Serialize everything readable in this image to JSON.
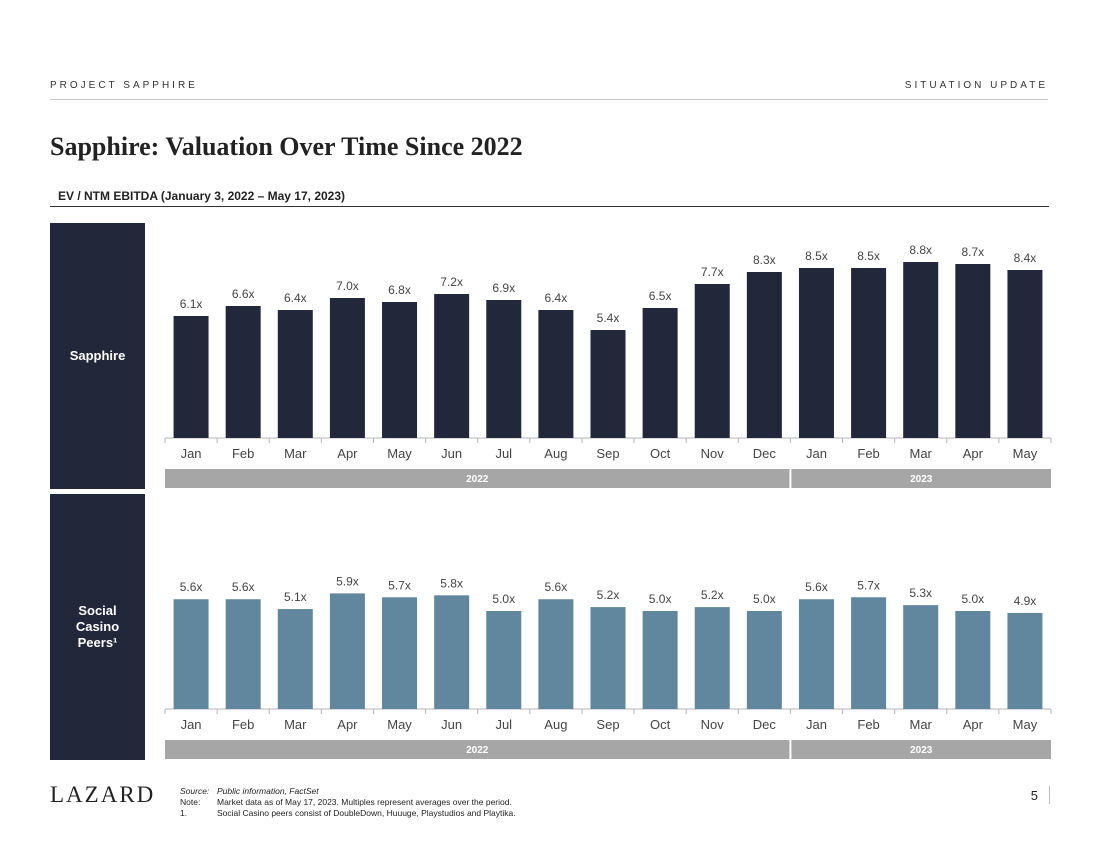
{
  "header": {
    "left": "PROJECT SAPPHIRE",
    "right": "SITUATION UPDATE"
  },
  "title": "Sapphire: Valuation Over Time Since 2022",
  "subtitle": "EV / NTM EBITDA (January 3, 2022 – May 17, 2023)",
  "colors": {
    "sapphire_bar": "#23273a",
    "peers_bar": "#61879f",
    "year_band": "#a6a6a6",
    "side_panel": "#23273a"
  },
  "chart_data": [
    {
      "type": "bar",
      "name": "sapphire",
      "panel_label": "Sapphire",
      "categories": [
        "Jan",
        "Feb",
        "Mar",
        "Apr",
        "May",
        "Jun",
        "Jul",
        "Aug",
        "Sep",
        "Oct",
        "Nov",
        "Dec",
        "Jan",
        "Feb",
        "Mar",
        "Apr",
        "May"
      ],
      "values": [
        6.1,
        6.6,
        6.4,
        7.0,
        6.8,
        7.2,
        6.9,
        6.4,
        5.4,
        6.5,
        7.7,
        8.3,
        8.5,
        8.5,
        8.8,
        8.7,
        8.4
      ],
      "labels": [
        "6.1x",
        "6.6x",
        "6.4x",
        "7.0x",
        "6.8x",
        "7.2x",
        "6.9x",
        "6.4x",
        "5.4x",
        "6.5x",
        "7.7x",
        "8.3x",
        "8.5x",
        "8.5x",
        "8.8x",
        "8.7x",
        "8.4x"
      ],
      "years": [
        {
          "label": "2022",
          "months": 12
        },
        {
          "label": "2023",
          "months": 5
        }
      ],
      "ylim": [
        0,
        9.5
      ]
    },
    {
      "type": "bar",
      "name": "social-casino-peers",
      "panel_label": "Social Casino Peers¹",
      "categories": [
        "Jan",
        "Feb",
        "Mar",
        "Apr",
        "May",
        "Jun",
        "Jul",
        "Aug",
        "Sep",
        "Oct",
        "Nov",
        "Dec",
        "Jan",
        "Feb",
        "Mar",
        "Apr",
        "May"
      ],
      "values": [
        5.6,
        5.6,
        5.1,
        5.9,
        5.7,
        5.8,
        5.0,
        5.6,
        5.2,
        5.0,
        5.2,
        5.0,
        5.6,
        5.7,
        5.3,
        5.0,
        4.9
      ],
      "labels": [
        "5.6x",
        "5.6x",
        "5.1x",
        "5.9x",
        "5.7x",
        "5.8x",
        "5.0x",
        "5.6x",
        "5.2x",
        "5.0x",
        "5.2x",
        "5.0x",
        "5.6x",
        "5.7x",
        "5.3x",
        "5.0x",
        "4.9x"
      ],
      "years": [
        {
          "label": "2022",
          "months": 12
        },
        {
          "label": "2023",
          "months": 5
        }
      ],
      "ylim": [
        0,
        9.5
      ]
    }
  ],
  "panels": {
    "sapphire_label": "Sapphire",
    "peers_label_lines": [
      "Social",
      "Casino",
      "Peers¹"
    ]
  },
  "footer": {
    "logo": "LAZARD",
    "source_key": "Source:",
    "source_text": "Public information, FactSet",
    "note_key": "Note:",
    "note_text": "Market data as of May 17, 2023. Multiples represent averages over the period.",
    "fn1_key": "1.",
    "fn1_text": "Social Casino peers consist of DoubleDown, Huuuge, Playstudios and Playtika.",
    "page_number": "5"
  }
}
